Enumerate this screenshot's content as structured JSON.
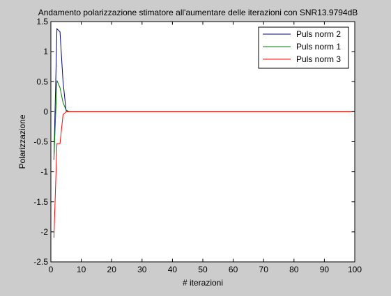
{
  "colors": {
    "figure_background": "#cccccc",
    "axes_background": "#ffffff",
    "axis": "#000000"
  },
  "chart_data": {
    "type": "line",
    "title": "Andamento polarizzazione stimatore all'aumentare delle iterazioni con SNR13.9794dB",
    "xlabel": "# iterazioni",
    "ylabel": "Polarizzazione",
    "xlim": [
      0,
      100
    ],
    "ylim": [
      -2.5,
      1.5
    ],
    "xticks": [
      0,
      10,
      20,
      30,
      40,
      50,
      60,
      70,
      80,
      90,
      100
    ],
    "yticks": [
      -2.5,
      -2,
      -1.5,
      -1,
      -0.5,
      0,
      0.5,
      1,
      1.5
    ],
    "grid": false,
    "legend_position": "top-right",
    "series": [
      {
        "name": "Puls norm 2",
        "color": "#00007f",
        "x": [
          1,
          2,
          3,
          4,
          5,
          6,
          100
        ],
        "y": [
          -0.8,
          1.38,
          1.33,
          0.5,
          0.02,
          0,
          0
        ]
      },
      {
        "name": "Puls norm 1",
        "color": "#007f00",
        "x": [
          1,
          2,
          3,
          4,
          5,
          6,
          100
        ],
        "y": [
          -0.8,
          0.52,
          0.4,
          0.15,
          0.03,
          0,
          0
        ]
      },
      {
        "name": "Puls norm 3",
        "color": "#ff0000",
        "x": [
          1,
          2,
          3,
          4,
          5,
          100
        ],
        "y": [
          -2.1,
          -0.53,
          -0.53,
          -0.05,
          0,
          0
        ]
      }
    ]
  }
}
